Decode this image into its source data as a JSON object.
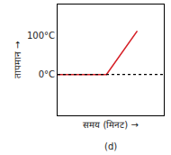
{
  "chart_data": {
    "type": "line",
    "xlabel": "समय (मिनट) →",
    "ylabel": "तापमान →",
    "annotation": "(d)",
    "series": [
      {
        "x": [
          0,
          4.6,
          7.5
        ],
        "values": [
          0,
          0,
          112
        ],
        "color": "#d62027",
        "line_style": "solid"
      },
      {
        "x": [
          0,
          10
        ],
        "values": [
          0,
          0
        ],
        "color": "#000000",
        "line_style": "dotted"
      }
    ],
    "xlim": [
      0,
      10
    ],
    "xticks": [],
    "ylim": [
      -105,
      180
    ],
    "yticks": [
      {
        "value": 0,
        "label": "0°C"
      },
      {
        "value": 100,
        "label": "100°C"
      }
    ],
    "tick_labels": "y",
    "grid": false
  }
}
